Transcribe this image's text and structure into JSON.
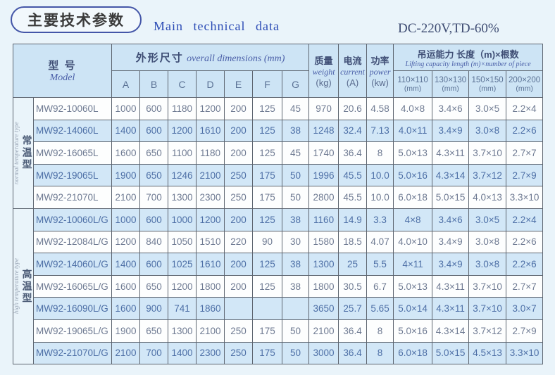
{
  "page": {
    "title_cn": "主要技术参数",
    "title_en": "Main  technical  data",
    "spec": "DC-220V,TD-60%"
  },
  "colors": {
    "page_bg": "#eaf4fa",
    "header_bg": "#cde4f5",
    "stripe_bg": "#d2e7f7",
    "border": "#5d6570",
    "accent_blue": "#2b4bb5",
    "text_plain_row": "#6e7a92",
    "text_stripe_row": "#4d6fa6"
  },
  "table": {
    "header": {
      "model_cn": "型 号",
      "model_en": "Model",
      "dims_cn": "外形尺寸",
      "dims_en": "overall dimensions (mm)",
      "dim_cols": [
        "A",
        "B",
        "C",
        "D",
        "E",
        "F",
        "G"
      ],
      "weight_cn": "质量",
      "weight_en": "weight",
      "weight_unit": "(kg)",
      "current_cn": "电流",
      "current_en": "current",
      "current_unit": "(A)",
      "power_cn": "功率",
      "power_en": "power",
      "power_unit": "(kw)",
      "capacity_cn": "吊运能力 长度（m)×根数",
      "capacity_en": "Lifting capacity length (m)×number of piece",
      "capacity_cols": [
        {
          "size": "110×110",
          "unit": "(mm)"
        },
        {
          "size": "130×130",
          "unit": "(mm)"
        },
        {
          "size": "150×150",
          "unit": "(mm)"
        },
        {
          "size": "200×200",
          "unit": "(mm)"
        }
      ]
    },
    "sections": [
      {
        "label_cn": "常温型",
        "label_en": "normal temperature type",
        "rows": [
          {
            "model": "MW92-10060L",
            "dims": [
              "1000",
              "600",
              "1180",
              "1200",
              "200",
              "125",
              "45"
            ],
            "weight": "970",
            "current": "20.6",
            "power": "4.58",
            "capacity": [
              "4.0×8",
              "3.4×6",
              "3.0×5",
              "2.2×4"
            ]
          },
          {
            "model": "MW92-14060L",
            "dims": [
              "1400",
              "600",
              "1200",
              "1610",
              "200",
              "125",
              "38"
            ],
            "weight": "1248",
            "current": "32.4",
            "power": "7.13",
            "capacity": [
              "4.0×11",
              "3.4×9",
              "3.0×8",
              "2.2×6"
            ]
          },
          {
            "model": "MW92-16065L",
            "dims": [
              "1600",
              "650",
              "1100",
              "1180",
              "200",
              "125",
              "45"
            ],
            "weight": "1740",
            "current": "36.4",
            "power": "8",
            "capacity": [
              "5.0×13",
              "4.3×11",
              "3.7×10",
              "2.7×7"
            ]
          },
          {
            "model": "MW92-19065L",
            "dims": [
              "1900",
              "650",
              "1246",
              "2100",
              "250",
              "175",
              "50"
            ],
            "weight": "1996",
            "current": "45.5",
            "power": "10.0",
            "capacity": [
              "5.0×16",
              "4.3×14",
              "3.7×12",
              "2.7×9"
            ]
          },
          {
            "model": "MW92-21070L",
            "dims": [
              "2100",
              "700",
              "1300",
              "2300",
              "250",
              "175",
              "50"
            ],
            "weight": "2800",
            "current": "45.5",
            "power": "10.0",
            "capacity": [
              "6.0×18",
              "5.0×15",
              "4.0×13",
              "3.3×10"
            ]
          }
        ]
      },
      {
        "label_cn": "高温型",
        "label_en": "high temperature type",
        "rows": [
          {
            "model": "MW92-10060L/G",
            "dims": [
              "1000",
              "600",
              "1000",
              "1200",
              "200",
              "125",
              "38"
            ],
            "weight": "1160",
            "current": "14.9",
            "power": "3.3",
            "capacity": [
              "4×8",
              "3.4×6",
              "3.0×5",
              "2.2×4"
            ]
          },
          {
            "model": "MW92-12084L/G",
            "dims": [
              "1200",
              "840",
              "1050",
              "1510",
              "220",
              "90",
              "30"
            ],
            "weight": "1580",
            "current": "18.5",
            "power": "4.07",
            "capacity": [
              "4.0×10",
              "3.4×9",
              "3.0×8",
              "2.2×6"
            ]
          },
          {
            "model": "MW92-14060L/G",
            "dims": [
              "1400",
              "600",
              "1025",
              "1610",
              "200",
              "125",
              "38"
            ],
            "weight": "1300",
            "current": "25",
            "power": "5.5",
            "capacity": [
              "4×11",
              "3.4×9",
              "3.0×8",
              "2.2×6"
            ]
          },
          {
            "model": "MW92-16065L/G",
            "dims": [
              "1600",
              "650",
              "1200",
              "1800",
              "200",
              "125",
              "38"
            ],
            "weight": "1800",
            "current": "30.5",
            "power": "6.7",
            "capacity": [
              "5.0×13",
              "4.3×11",
              "3.7×10",
              "2.7×7"
            ]
          },
          {
            "model": "MW92-16090L/G",
            "dims": [
              "1600",
              "900",
              "741",
              "1860",
              "",
              "",
              ""
            ],
            "weight": "3650",
            "current": "25.7",
            "power": "5.65",
            "capacity": [
              "5.0×14",
              "4.3×11",
              "3.7×10",
              "3.0×7"
            ]
          },
          {
            "model": "MW92-19065L/G",
            "dims": [
              "1900",
              "650",
              "1300",
              "2100",
              "250",
              "175",
              "50"
            ],
            "weight": "2100",
            "current": "36.4",
            "power": "8",
            "capacity": [
              "5.0×16",
              "4.3×14",
              "3.7×12",
              "2.7×9"
            ]
          },
          {
            "model": "MW92-21070L/G",
            "dims": [
              "2100",
              "700",
              "1400",
              "2300",
              "250",
              "175",
              "50"
            ],
            "weight": "3000",
            "current": "36.4",
            "power": "8",
            "capacity": [
              "6.0×18",
              "5.0×15",
              "4.5×13",
              "3.3×10"
            ]
          }
        ]
      }
    ]
  }
}
